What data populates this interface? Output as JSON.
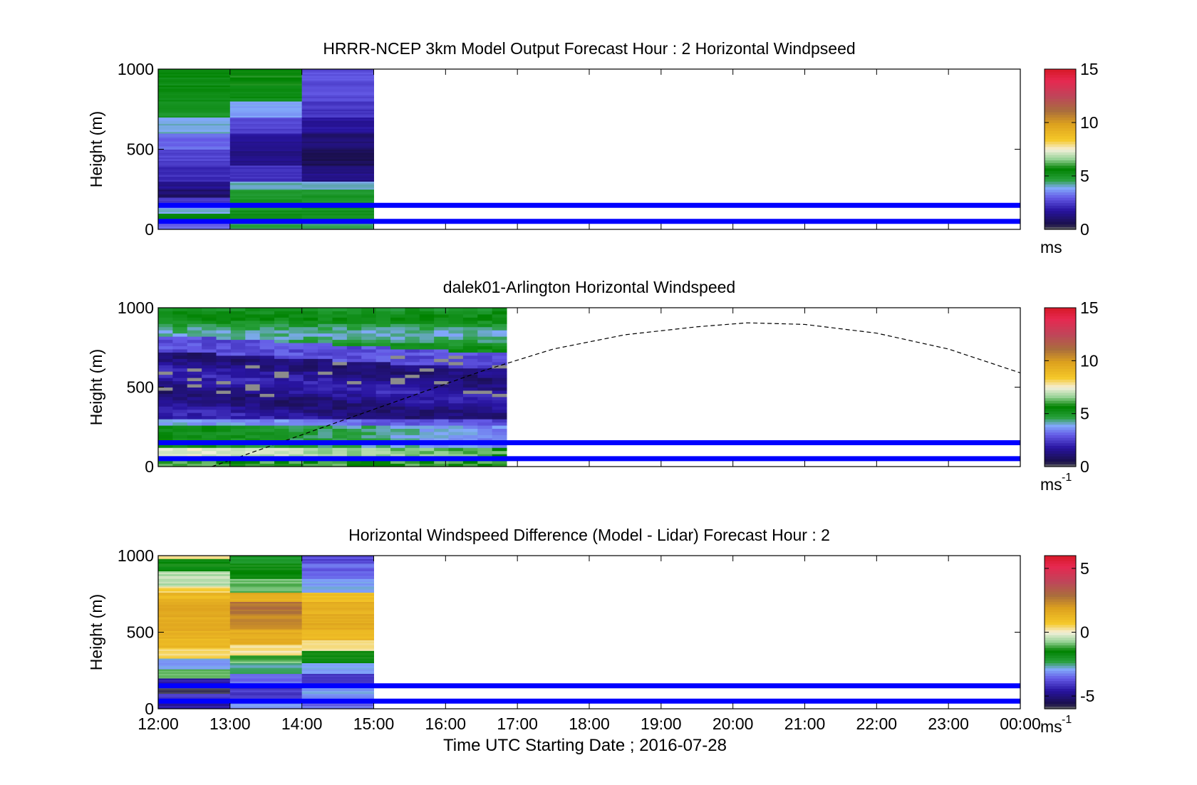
{
  "figure": {
    "xlabel": "Time UTC  Starting Date ; 2016-07-28",
    "xticks": [
      "12:00",
      "13:00",
      "14:00",
      "15:00",
      "16:00",
      "17:00",
      "18:00",
      "19:00",
      "20:00",
      "21:00",
      "22:00",
      "23:00",
      "00:00"
    ]
  },
  "chart_data": [
    {
      "type": "heatmap",
      "title": "HRRR-NCEP 3km Model Output   Forecast Hour : 2 Horizontal Windpseed",
      "ylabel": "Height (m)",
      "ylim": [
        0,
        1000
      ],
      "yticks": [
        "0",
        "500",
        "1000"
      ],
      "xlim_hours": [
        12,
        24
      ],
      "colorbar": {
        "label": "ms",
        "label_sup": "",
        "range": [
          0,
          15
        ],
        "ticks": [
          "0",
          "5",
          "10",
          "15"
        ]
      },
      "data_columns": [
        {
          "x_start": "12:00",
          "x_end": "13:00",
          "cells": [
            [
              0,
              3.2
            ],
            [
              50,
              5.5
            ],
            [
              100,
              4.0
            ],
            [
              150,
              2.5
            ],
            [
              200,
              1.0
            ],
            [
              250,
              1.5
            ],
            [
              300,
              2.2
            ],
            [
              400,
              2.6
            ],
            [
              500,
              3.2
            ],
            [
              600,
              4.0
            ],
            [
              700,
              5.0
            ],
            [
              800,
              5.4
            ]
          ]
        },
        {
          "x_start": "13:00",
          "x_end": "14:00",
          "cells": [
            [
              0,
              4.6
            ],
            [
              50,
              5.2
            ],
            [
              120,
              5.0
            ],
            [
              250,
              4.2
            ],
            [
              300,
              2.4
            ],
            [
              400,
              1.4
            ],
            [
              500,
              1.7
            ],
            [
              600,
              2.6
            ],
            [
              700,
              3.7
            ],
            [
              800,
              5.3
            ],
            [
              900,
              5.7
            ]
          ]
        },
        {
          "x_start": "14:00",
          "x_end": "15:00",
          "cells": [
            [
              0,
              4.6
            ],
            [
              50,
              5.2
            ],
            [
              120,
              5.0
            ],
            [
              250,
              4.2
            ],
            [
              300,
              1.4
            ],
            [
              400,
              0.7
            ],
            [
              500,
              1.1
            ],
            [
              600,
              1.7
            ],
            [
              700,
              2.4
            ],
            [
              800,
              2.8
            ]
          ]
        }
      ],
      "reference_lines_m": [
        50,
        150
      ],
      "reference_line_color": "#0000ff"
    },
    {
      "type": "heatmap",
      "title": "dalek01-Arlington  Horizontal Windspeed",
      "ylabel": "Height (m)",
      "ylim": [
        0,
        1000
      ],
      "yticks": [
        "0",
        "500",
        "1000"
      ],
      "xlim_hours": [
        12,
        24
      ],
      "colorbar": {
        "label": "ms",
        "label_sup": "-1",
        "range": [
          0,
          15
        ],
        "ticks": [
          "0",
          "5",
          "10",
          "15"
        ]
      },
      "data_extent_hours": [
        12,
        16.85
      ],
      "profile_notes": "green near surface (~5-7 m/s), purple/dark blue 250-800 m (~1-3 m/s), green above 800 m, grey missing segments",
      "dashed_curve": {
        "x_hours": [
          12.75,
          13.5,
          14.5,
          15.5,
          16.5,
          17.5,
          18.5,
          19.5,
          20.2,
          21.0,
          22.0,
          23.0,
          24.0
        ],
        "y_m": [
          0,
          120,
          280,
          440,
          600,
          740,
          830,
          880,
          905,
          895,
          840,
          740,
          590
        ]
      },
      "reference_lines_m": [
        50,
        150
      ],
      "reference_line_color": "#0000ff"
    },
    {
      "type": "heatmap",
      "title": "Horizontal Windspeed Difference (Model - Lidar) Forecast Hour : 2",
      "ylabel": "Height (m)",
      "ylim": [
        0,
        1000
      ],
      "yticks": [
        "0",
        "500",
        "1000"
      ],
      "xlim_hours": [
        12,
        24
      ],
      "colorbar": {
        "label": "ms",
        "label_sup": "-1",
        "range": [
          -6,
          6
        ],
        "ticks": [
          "-5",
          "0",
          "5"
        ]
      },
      "data_columns": [
        {
          "x_start": "12:00",
          "x_end": "13:00",
          "cells": [
            [
              0,
              -4.5
            ],
            [
              50,
              -4
            ],
            [
              100,
              -6
            ],
            [
              150,
              -4.5
            ],
            [
              200,
              -1
            ],
            [
              260,
              -3
            ],
            [
              330,
              0.5
            ],
            [
              400,
              1.3
            ],
            [
              500,
              1.5
            ],
            [
              600,
              1.8
            ],
            [
              700,
              1.2
            ],
            [
              760,
              0.5
            ],
            [
              800,
              -0.5
            ],
            [
              900,
              -1.5
            ],
            [
              980,
              0.5
            ]
          ]
        },
        {
          "x_start": "13:00",
          "x_end": "14:00",
          "cells": [
            [
              0,
              -3
            ],
            [
              60,
              -4
            ],
            [
              150,
              -3.5
            ],
            [
              230,
              -2.5
            ],
            [
              300,
              -1
            ],
            [
              350,
              0.3
            ],
            [
              420,
              1.5
            ],
            [
              520,
              2.3
            ],
            [
              620,
              2.8
            ],
            [
              700,
              1.5
            ],
            [
              760,
              -1
            ],
            [
              850,
              -1.5
            ],
            [
              950,
              -2
            ]
          ]
        },
        {
          "x_start": "14:00",
          "x_end": "15:00",
          "cells": [
            [
              0,
              -3.5
            ],
            [
              60,
              -3
            ],
            [
              150,
              -4
            ],
            [
              230,
              -3
            ],
            [
              300,
              -1.5
            ],
            [
              380,
              0.3
            ],
            [
              450,
              1.2
            ],
            [
              520,
              1.6
            ],
            [
              620,
              1.4
            ],
            [
              700,
              1.0
            ],
            [
              760,
              -3
            ],
            [
              850,
              -3.5
            ],
            [
              950,
              -3.8
            ]
          ]
        }
      ],
      "reference_lines_m": [
        50,
        150
      ],
      "reference_line_color": "#0000ff"
    }
  ]
}
